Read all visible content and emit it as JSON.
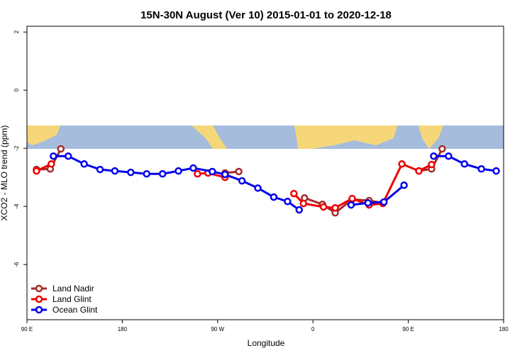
{
  "chart_data": {
    "type": "line",
    "title": "15N-30N August (Ver 10)   2015-01-01 to 2020-12-18",
    "x_label": "Longitude",
    "y_label": "XCO2 - MLO trend (ppm)",
    "xlim": [
      90,
      540
    ],
    "ylim": [
      -7.9,
      2.2
    ],
    "xticks": [
      {
        "value": 90,
        "label": "90 E"
      },
      180,
      {
        "value": 270,
        "label": "90 W"
      },
      {
        "value": 360,
        "label": "0"
      },
      {
        "value": 450,
        "label": "90 E"
      },
      {
        "value": 540,
        "label": "180"
      }
    ],
    "yticks": [
      -6,
      -4,
      -2,
      0,
      2
    ],
    "legend": "bottom-left",
    "series": [
      {
        "name": "Land Nadir",
        "color": "#a52a2a",
        "x": [
          99,
          112,
          122,
          null,
          277,
          290,
          null,
          352,
          369,
          381,
          397,
          413,
          426,
          null,
          460,
          472,
          482
        ],
        "values": [
          -2.73,
          -2.71,
          -2.02,
          null,
          -2.85,
          -2.8,
          null,
          -3.71,
          -3.93,
          -4.22,
          -3.76,
          -3.8,
          -3.88,
          null,
          -2.78,
          -2.71,
          -2.02
        ]
      },
      {
        "name": "Land Glint",
        "color": "#ee0000",
        "x": [
          99,
          113,
          null,
          251,
          261,
          277,
          null,
          342,
          351,
          370,
          381,
          397,
          413,
          426,
          444,
          460,
          472
        ],
        "values": [
          -2.78,
          -2.54,
          null,
          -2.88,
          -2.85,
          -3.0,
          null,
          -3.56,
          -3.9,
          -4.02,
          -4.05,
          -3.73,
          -3.95,
          -3.9,
          -2.54,
          -2.78,
          -2.56
        ]
      },
      {
        "name": "Ocean Glint",
        "color": "#0000ee",
        "x": [
          115,
          129,
          144,
          159,
          173,
          188,
          203,
          218,
          233,
          247,
          265,
          277,
          293,
          308,
          323,
          336,
          347,
          null,
          396,
          412,
          427,
          446,
          null,
          474,
          488,
          503,
          519,
          533
        ],
        "values": [
          -2.27,
          -2.27,
          -2.54,
          -2.73,
          -2.78,
          -2.83,
          -2.88,
          -2.88,
          -2.78,
          -2.68,
          -2.8,
          -2.9,
          -3.12,
          -3.37,
          -3.68,
          -3.83,
          -4.12,
          null,
          -3.95,
          -3.88,
          -3.85,
          -3.27,
          null,
          -2.27,
          -2.27,
          -2.54,
          -2.71,
          -2.78
        ]
      }
    ]
  }
}
